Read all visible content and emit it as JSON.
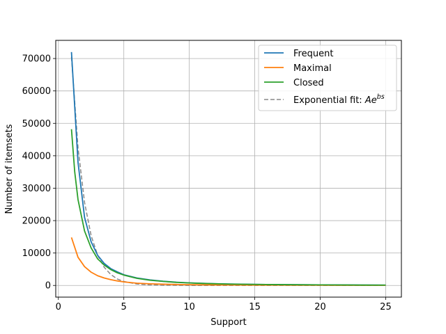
{
  "chart_data": {
    "type": "line",
    "title": "",
    "xlabel": "Support",
    "ylabel": "Number of itemsets",
    "xlim": [
      -0.2,
      26.2
    ],
    "ylim": [
      -3600,
      75600
    ],
    "xticks": [
      0,
      5,
      10,
      15,
      20,
      25
    ],
    "yticks": [
      0,
      10000,
      20000,
      30000,
      40000,
      50000,
      60000,
      70000
    ],
    "grid": true,
    "legend_position": "top-right",
    "series": [
      {
        "name": "Frequent",
        "color": "#1f77b4",
        "style": "solid",
        "x": [
          1,
          1.5,
          2,
          2.5,
          3,
          3.5,
          4,
          4.5,
          5,
          6,
          7,
          8,
          9,
          10,
          11,
          12,
          13,
          14,
          15,
          16,
          17,
          18,
          19,
          20,
          21,
          22,
          23,
          24,
          25
        ],
        "y": [
          72000,
          38000,
          21000,
          13500,
          9300,
          6800,
          5200,
          4200,
          3300,
          2300,
          1700,
          1300,
          1000,
          800,
          650,
          530,
          440,
          380,
          330,
          290,
          260,
          230,
          210,
          190,
          170,
          150,
          130,
          110,
          100
        ]
      },
      {
        "name": "Maximal",
        "color": "#ff7f0e",
        "style": "solid",
        "x": [
          1,
          1.5,
          2,
          2.5,
          3,
          3.5,
          4,
          4.5,
          5,
          6,
          7,
          8,
          9,
          10,
          11,
          12,
          13,
          14,
          15,
          16,
          17,
          18,
          19,
          20,
          21,
          22,
          23,
          24,
          25
        ],
        "y": [
          14800,
          8700,
          5800,
          4100,
          3000,
          2300,
          1800,
          1400,
          1100,
          700,
          500,
          380,
          300,
          240,
          200,
          170,
          150,
          130,
          120,
          110,
          100,
          90,
          80,
          70,
          65,
          60,
          55,
          50,
          45
        ]
      },
      {
        "name": "Closed",
        "color": "#2ca02c",
        "style": "solid",
        "x": [
          1,
          1.25,
          1.5,
          2,
          2.5,
          3,
          3.5,
          4,
          4.5,
          5,
          6,
          7,
          8,
          9,
          10,
          11,
          12,
          13,
          14,
          15,
          16,
          17,
          18,
          19,
          20,
          21,
          22,
          23,
          24,
          25
        ],
        "y": [
          48200,
          35000,
          26500,
          16800,
          11600,
          8200,
          6300,
          4900,
          3900,
          3200,
          2200,
          1600,
          1250,
          950,
          780,
          630,
          520,
          430,
          370,
          320,
          280,
          250,
          220,
          200,
          180,
          160,
          140,
          120,
          105,
          95
        ]
      },
      {
        "name": "Exponential fit: ",
        "name_math": "Ae^bs",
        "color": "#888888",
        "style": "dashed",
        "x": [
          1,
          1.5,
          2,
          2.5,
          3,
          3.5,
          4,
          4.5,
          5,
          6,
          7,
          8,
          10,
          12,
          15,
          20,
          25
        ],
        "y": [
          70500,
          42500,
          25600,
          15400,
          9300,
          5600,
          3400,
          2000,
          1220,
          440,
          160,
          60,
          8,
          1,
          0,
          0,
          0
        ]
      }
    ]
  }
}
